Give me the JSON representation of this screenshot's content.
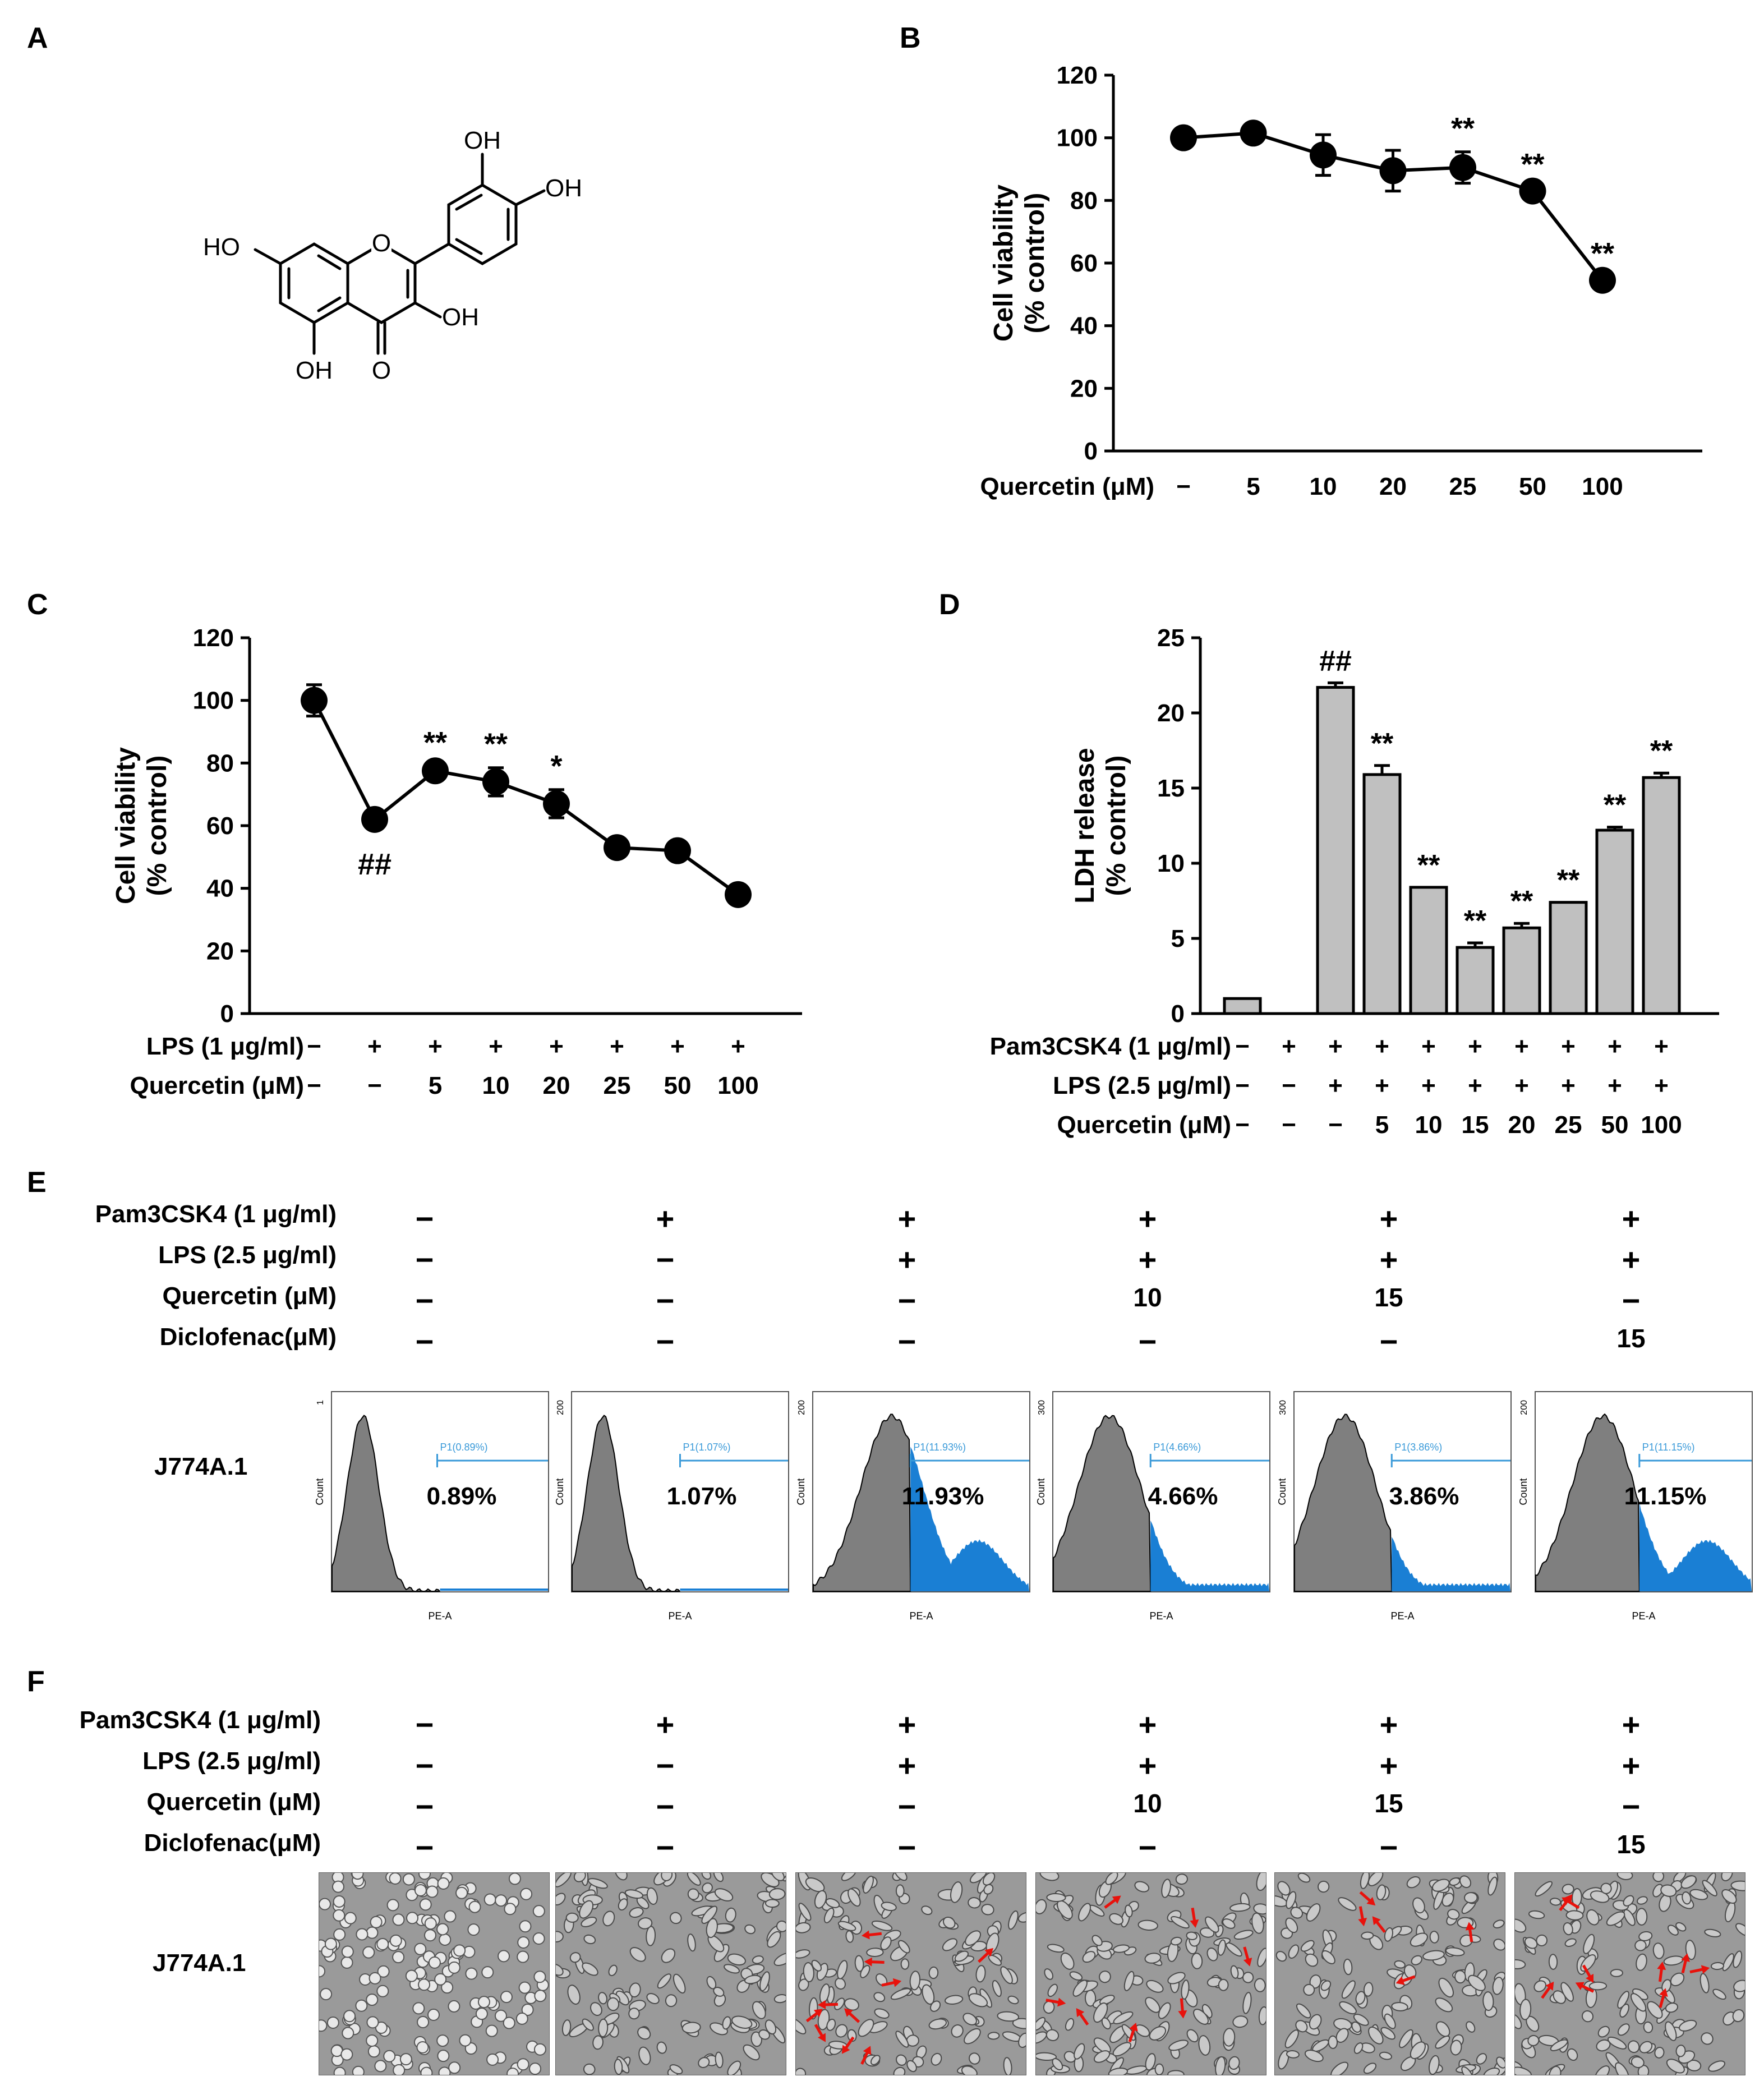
{
  "panels": {
    "A": {
      "label": "A",
      "molecule": {
        "substituents": [
          "OH",
          "OH",
          "HO",
          "OH",
          "OH",
          "O"
        ]
      }
    },
    "B": {
      "label": "B",
      "E": "E",
      "F": "F",
      "C": "C",
      "D": "D"
    }
  },
  "chart_data": [
    {
      "id": "B",
      "type": "line",
      "ylabel": "Cell viability\n(% control)",
      "ylim": [
        0,
        120
      ],
      "yticks": [
        "0",
        "20",
        "40",
        "60",
        "80",
        "100",
        "120"
      ],
      "row_labels": [
        "Quercetin (μM)"
      ],
      "categories": [
        "−",
        "5",
        "10",
        "20",
        "25",
        "50",
        "100"
      ],
      "values": [
        100,
        101.5,
        94.5,
        89.5,
        90.5,
        83,
        54.5
      ],
      "errors": [
        2,
        1,
        6.5,
        6.5,
        5,
        1,
        1
      ],
      "annotations": [
        "",
        "",
        "",
        "",
        "**",
        "**",
        "**"
      ]
    },
    {
      "id": "C",
      "type": "line",
      "ylabel": "Cell viability\n(% control)",
      "ylim": [
        0,
        120
      ],
      "yticks": [
        "0",
        "20",
        "40",
        "60",
        "80",
        "100",
        "120"
      ],
      "row_labels": [
        "LPS (1 μg/ml)",
        "Quercetin (μM)"
      ],
      "rows": [
        [
          "−",
          "+",
          "+",
          "+",
          "+",
          "+",
          "+",
          "+"
        ],
        [
          "−",
          "−",
          "5",
          "10",
          "20",
          "25",
          "50",
          "100"
        ]
      ],
      "values": [
        100,
        62,
        77.5,
        74,
        67,
        53,
        52,
        38
      ],
      "errors": [
        5,
        1.5,
        1.5,
        4.5,
        4.5,
        2,
        1,
        1
      ],
      "annotations": [
        "",
        "##",
        "**",
        "**",
        "*",
        "",
        "",
        ""
      ],
      "annotation_below": [
        false,
        true,
        false,
        false,
        false,
        false,
        false,
        false
      ]
    },
    {
      "id": "D",
      "type": "bar",
      "ylabel": "LDH release\n(% control)",
      "ylim": [
        0,
        25
      ],
      "yticks": [
        "0",
        "5",
        "10",
        "15",
        "20",
        "25"
      ],
      "row_labels": [
        "Pam3CSK4 (1 μg/ml)",
        "LPS (2.5 μg/ml)",
        "Quercetin (μM)"
      ],
      "rows": [
        [
          "−",
          "+",
          "+",
          "+",
          "+",
          "+",
          "+",
          "+",
          "+",
          "+"
        ],
        [
          "−",
          "−",
          "+",
          "+",
          "+",
          "+",
          "+",
          "+",
          "+",
          "+"
        ],
        [
          "−",
          "−",
          "−",
          "5",
          "10",
          "15",
          "20",
          "25",
          "50",
          "100"
        ]
      ],
      "values": [
        1,
        0,
        21.7,
        15.9,
        8.4,
        4.4,
        5.7,
        7.4,
        12.2,
        15.7
      ],
      "errors": [
        0,
        0,
        0.3,
        0.6,
        0,
        0.3,
        0.3,
        0,
        0.2,
        0.3
      ],
      "annotations": [
        "",
        "",
        "##",
        "**",
        "**",
        "**",
        "**",
        "**",
        "**",
        "**"
      ]
    },
    {
      "id": "E",
      "type": "histogram",
      "row_labels": [
        "Pam3CSK4 (1 μg/ml)",
        "LPS (2.5 μg/ml)",
        "Quercetin (μM)",
        "Diclofenac(μM)"
      ],
      "rows": [
        [
          "−",
          "+",
          "+",
          "+",
          "+",
          "+"
        ],
        [
          "−",
          "−",
          "+",
          "+",
          "+",
          "+"
        ],
        [
          "−",
          "−",
          "−",
          "10",
          "15",
          "−"
        ],
        [
          "−",
          "−",
          "−",
          "−",
          "−",
          "15"
        ]
      ],
      "cell_line": "J774A.1",
      "percentages": [
        "0.89%",
        "1.07%",
        "11.93%",
        "4.66%",
        "3.86%",
        "11.15%"
      ],
      "gate_labels": [
        "P1(0.89%)",
        "P1(1.07%)",
        "P1(11.93%)",
        "P1(4.66%)",
        "P1(3.86%)",
        "P1(11.15%)"
      ],
      "xlabel": "PE-A",
      "ylabel": "Count",
      "y_max": [
        "1",
        "200",
        "200",
        "300",
        "300",
        "200"
      ]
    },
    {
      "id": "F",
      "type": "table",
      "row_labels": [
        "Pam3CSK4 (1 μg/ml)",
        "LPS (2.5 μg/ml)",
        "Quercetin (μM)",
        "Diclofenac(μM)"
      ],
      "rows": [
        [
          "−",
          "+",
          "+",
          "+",
          "+",
          "+"
        ],
        [
          "−",
          "−",
          "+",
          "+",
          "+",
          "+"
        ],
        [
          "−",
          "−",
          "−",
          "10",
          "15",
          "−"
        ],
        [
          "−",
          "−",
          "−",
          "−",
          "−",
          "15"
        ]
      ],
      "cell_line": "J774A.1"
    }
  ],
  "colors": {
    "bar": "#c0c0c0",
    "histogram_gray": "#7f7f7f",
    "histogram_blue": "#1a7fd4",
    "arrow": "#e8120c",
    "gate": "#3a9ad9"
  }
}
